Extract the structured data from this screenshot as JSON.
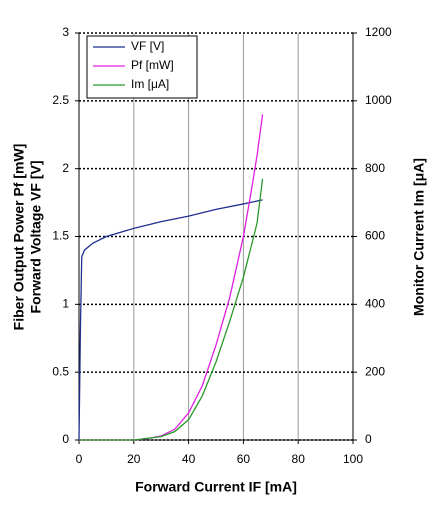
{
  "chart_data": {
    "type": "line",
    "xlabel": "Forward Current IF [mA]",
    "ylabel": [
      "Fiber Output Power Pf [mW]",
      "Forward Voltage VF [V]"
    ],
    "y2label": "Monitor Current Im [μA]",
    "xlim": [
      0,
      100
    ],
    "xticks": [
      0,
      20,
      40,
      60,
      80,
      100
    ],
    "ylim": [
      0,
      3
    ],
    "yticks": [
      0,
      0.5,
      1,
      1.5,
      2,
      2.5,
      3
    ],
    "y2lim": [
      0,
      1200
    ],
    "y2ticks": [
      0,
      200,
      400,
      600,
      800,
      1000,
      1200
    ],
    "grid": true,
    "legend": "upper left",
    "series": [
      {
        "name": "VF [V]",
        "color": "#1f2f8f",
        "x": [
          0,
          0.5,
          1,
          2,
          5,
          10,
          20,
          30,
          40,
          50,
          60,
          67
        ],
        "values": [
          0,
          0.8,
          1.35,
          1.4,
          1.45,
          1.5,
          1.56,
          1.61,
          1.65,
          1.7,
          1.74,
          1.77
        ]
      },
      {
        "name": "Pf [mW]",
        "color": "#e020e0",
        "x": [
          0,
          20,
          25,
          30,
          35,
          40,
          45,
          50,
          55,
          60,
          63,
          65,
          67
        ],
        "values": [
          0,
          0,
          0.01,
          0.03,
          0.08,
          0.2,
          0.4,
          0.7,
          1.05,
          1.5,
          1.85,
          2.1,
          2.4
        ]
      },
      {
        "name": "Im [μA]",
        "color": "#2a9a2a",
        "axis": "y2",
        "x": [
          0,
          20,
          30,
          35,
          40,
          45,
          50,
          55,
          60,
          65,
          67
        ],
        "values": [
          0,
          0,
          10,
          25,
          60,
          130,
          230,
          350,
          480,
          640,
          770
        ]
      }
    ]
  }
}
